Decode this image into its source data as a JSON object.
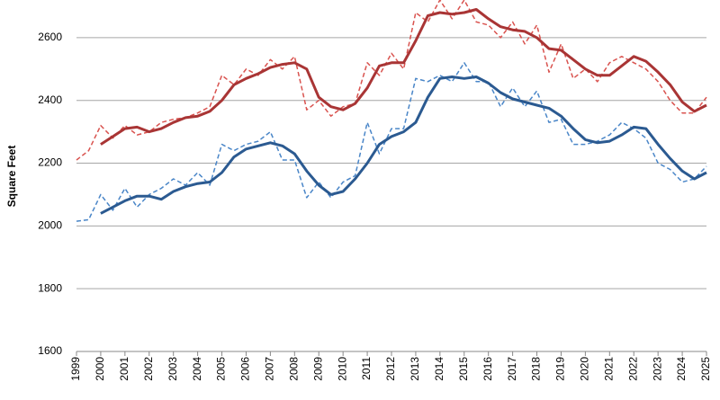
{
  "chart_data": {
    "type": "line",
    "y_label": "Square Feet",
    "x": [
      1999,
      1999.5,
      2000,
      2000.5,
      2001,
      2001.5,
      2002,
      2002.5,
      2003,
      2003.5,
      2004,
      2004.5,
      2005,
      2005.5,
      2006,
      2006.5,
      2007,
      2007.5,
      2008,
      2008.5,
      2009,
      2009.5,
      2010,
      2010.5,
      2011,
      2011.5,
      2012,
      2012.5,
      2013,
      2013.5,
      2014,
      2014.5,
      2015,
      2015.5,
      2016,
      2016.5,
      2017,
      2017.5,
      2018,
      2018.5,
      2019,
      2019.5,
      2020,
      2020.5,
      2021,
      2021.5,
      2022,
      2022.5,
      2023,
      2023.5,
      2024,
      2024.5,
      2025
    ],
    "xlim": [
      1999,
      2025
    ],
    "xticks": [
      1999,
      2000,
      2001,
      2002,
      2003,
      2004,
      2005,
      2006,
      2007,
      2008,
      2009,
      2010,
      2011,
      2012,
      2013,
      2014,
      2015,
      2016,
      2017,
      2018,
      2019,
      2020,
      2021,
      2022,
      2023,
      2024,
      2025
    ],
    "ylim": [
      1600,
      2720
    ],
    "yticks": [
      1600,
      1800,
      2000,
      2200,
      2400,
      2600
    ],
    "grid": true,
    "series": [
      {
        "color": "#d9534f",
        "dashed": true,
        "values": [
          2210,
          2240,
          2320,
          2280,
          2320,
          2290,
          2300,
          2330,
          2340,
          2345,
          2360,
          2380,
          2480,
          2450,
          2500,
          2480,
          2530,
          2500,
          2540,
          2370,
          2400,
          2350,
          2380,
          2390,
          2520,
          2480,
          2550,
          2500,
          2680,
          2650,
          2720,
          2660,
          2720,
          2650,
          2640,
          2600,
          2650,
          2580,
          2640,
          2490,
          2580,
          2470,
          2500,
          2460,
          2520,
          2540,
          2520,
          2500,
          2460,
          2400,
          2360,
          2360,
          2410
        ]
      },
      {
        "color": "#4a86c8",
        "dashed": true,
        "values": [
          2015,
          2020,
          2100,
          2050,
          2120,
          2060,
          2100,
          2120,
          2150,
          2130,
          2170,
          2130,
          2260,
          2240,
          2260,
          2270,
          2300,
          2210,
          2210,
          2090,
          2140,
          2090,
          2140,
          2160,
          2330,
          2230,
          2310,
          2310,
          2470,
          2460,
          2480,
          2460,
          2520,
          2460,
          2460,
          2380,
          2440,
          2380,
          2430,
          2330,
          2340,
          2260,
          2260,
          2270,
          2290,
          2330,
          2310,
          2280,
          2200,
          2180,
          2140,
          2150,
          2190
        ]
      },
      {
        "color": "#a93535",
        "dashed": false,
        "values": [
          null,
          null,
          2260,
          2285,
          2310,
          2315,
          2300,
          2310,
          2330,
          2345,
          2350,
          2365,
          2400,
          2450,
          2470,
          2485,
          2505,
          2515,
          2520,
          2500,
          2410,
          2380,
          2370,
          2390,
          2440,
          2510,
          2520,
          2520,
          2590,
          2670,
          2680,
          2675,
          2680,
          2690,
          2660,
          2635,
          2625,
          2620,
          2600,
          2565,
          2560,
          2530,
          2500,
          2480,
          2480,
          2510,
          2540,
          2525,
          2490,
          2450,
          2395,
          2365,
          2385
        ]
      },
      {
        "color": "#2b5a91",
        "dashed": false,
        "values": [
          null,
          null,
          2040,
          2060,
          2080,
          2095,
          2095,
          2085,
          2110,
          2125,
          2135,
          2140,
          2170,
          2220,
          2245,
          2255,
          2265,
          2255,
          2230,
          2175,
          2130,
          2100,
          2110,
          2150,
          2200,
          2260,
          2285,
          2300,
          2330,
          2410,
          2470,
          2475,
          2470,
          2475,
          2455,
          2425,
          2405,
          2395,
          2385,
          2375,
          2350,
          2310,
          2275,
          2265,
          2270,
          2290,
          2315,
          2310,
          2260,
          2215,
          2175,
          2150,
          2170
        ]
      }
    ]
  }
}
